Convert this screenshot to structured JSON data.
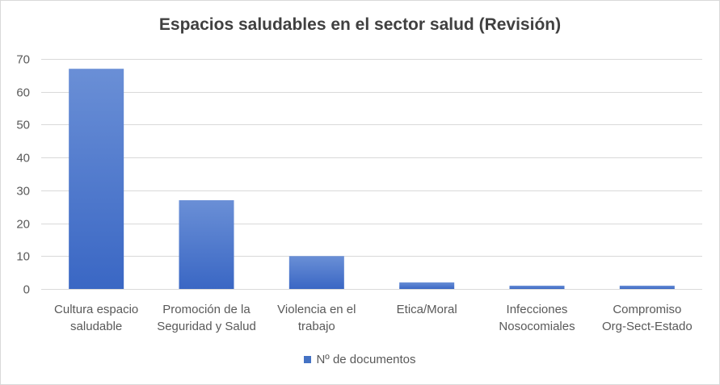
{
  "chart_data": {
    "type": "bar",
    "title": "Espacios saludables en el sector salud (Revisión)",
    "categories": [
      [
        "Cultura espacio",
        "saludable"
      ],
      [
        "Promoción de la",
        "Seguridad y Salud"
      ],
      [
        "Violencia en el",
        "trabajo"
      ],
      [
        "Etica/Moral"
      ],
      [
        "Infecciones",
        "Nosocomiales"
      ],
      [
        "Compromiso",
        "Org-Sect-Estado"
      ]
    ],
    "series": [
      {
        "name": "Nº de documentos",
        "values": [
          67,
          27,
          10,
          2,
          1,
          1
        ]
      }
    ],
    "ylim": [
      0,
      70
    ],
    "yticks": [
      0,
      10,
      20,
      30,
      40,
      50,
      60,
      70
    ],
    "grid": true,
    "legend_position": "bottom",
    "colors": {
      "bar_top": "#6a8fd6",
      "bar_bottom": "#3a67c4",
      "grid": "#d9d9d9",
      "swatch": "#4472c4"
    }
  }
}
